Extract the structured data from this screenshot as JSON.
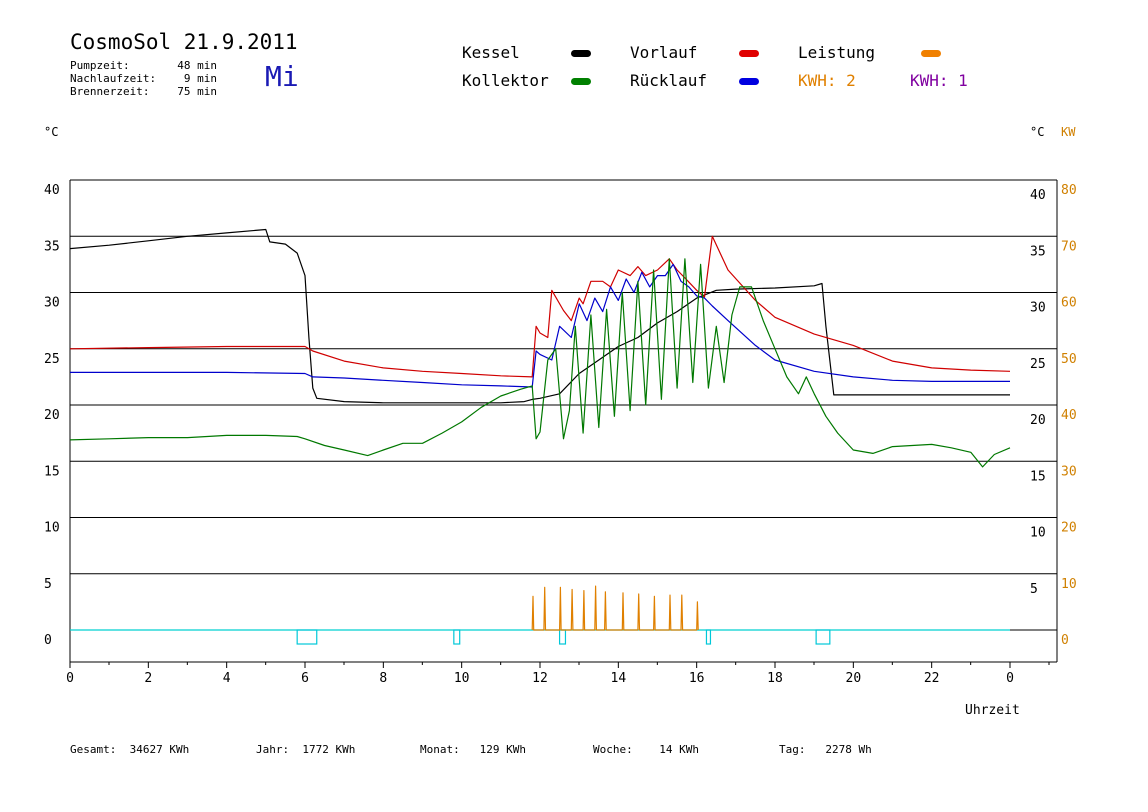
{
  "title": "CosmoSol 21.9.2011",
  "day": "Mi",
  "stats": [
    {
      "label": "Pumpzeit:",
      "value": "48 min"
    },
    {
      "label": "Nachlaufzeit:",
      "value": "9 min"
    },
    {
      "label": "Brennerzeit:",
      "value": "75 min"
    }
  ],
  "legend": [
    {
      "label": "Kessel",
      "color": "#000000"
    },
    {
      "label": "Vorlauf",
      "color": "#e00000"
    },
    {
      "label": "Leistung",
      "color": "#f08000"
    },
    {
      "label": "Kollektor",
      "color": "#008000"
    },
    {
      "label": "Rücklauf",
      "color": "#0000e0"
    },
    {
      "label": "KWH: 2",
      "color": "#e08000"
    },
    {
      "label": "KWH: 1",
      "color": "#8000a0"
    }
  ],
  "units": {
    "left": "°C",
    "right_c": "°C",
    "right_kw": "KW"
  },
  "footer": {
    "gesamt": "Gesamt:  34627 KWh",
    "jahr": "Jahr:  1772 KWh",
    "monat": "Monat:   129 KWh",
    "woche": "Woche:    14 KWh",
    "tag": "Tag:   2278 Wh"
  },
  "chart_data": {
    "type": "line",
    "xlabel": "Uhrzeit",
    "xlim": [
      0,
      24
    ],
    "ylim": [
      0,
      40
    ],
    "x_tick_labels": [
      "0",
      "2",
      "4",
      "6",
      "8",
      "10",
      "12",
      "14",
      "16",
      "18",
      "20",
      "22",
      "0"
    ],
    "y_ticks": [
      0,
      5,
      10,
      15,
      20,
      25,
      30,
      35,
      40
    ],
    "right_c_ticks": [
      "5",
      "10",
      "15",
      "20",
      "25",
      "30",
      "35",
      "40"
    ],
    "right_kw_ticks": [
      "0",
      "10",
      "20",
      "30",
      "40",
      "50",
      "60",
      "70",
      "80"
    ],
    "grid": true,
    "series": [
      {
        "name": "Kessel",
        "color": "#000000",
        "x": [
          0,
          1,
          2,
          3,
          4,
          5,
          5.1,
          5.5,
          5.8,
          6.0,
          6.1,
          6.2,
          6.3,
          7,
          8,
          9,
          10,
          11,
          11.6,
          11.8,
          12.0,
          12.5,
          13,
          13.5,
          14,
          14.5,
          15,
          15.5,
          16,
          16.5,
          17,
          18,
          19,
          19.2,
          19.3,
          19.5,
          21,
          22,
          23,
          24
        ],
        "y": [
          33.9,
          34.2,
          34.6,
          35.0,
          35.3,
          35.6,
          34.5,
          34.3,
          33.5,
          31.5,
          26,
          21.5,
          20.6,
          20.3,
          20.2,
          20.2,
          20.2,
          20.2,
          20.3,
          20.5,
          20.6,
          21.0,
          22.8,
          24.0,
          25.2,
          26.0,
          27.3,
          28.3,
          29.5,
          30.2,
          30.3,
          30.4,
          30.6,
          30.8,
          27,
          20.9,
          20.9,
          20.9,
          20.9,
          20.9
        ]
      },
      {
        "name": "Vorlauf",
        "color": "#d00000",
        "x": [
          0,
          2,
          4,
          6,
          6.2,
          7,
          8,
          9,
          10,
          11,
          11.8,
          11.9,
          12.0,
          12.2,
          12.3,
          12.6,
          12.8,
          13.0,
          13.1,
          13.3,
          13.6,
          13.8,
          14.0,
          14.3,
          14.5,
          14.7,
          15.0,
          15.3,
          15.5,
          15.7,
          16.0,
          16.2,
          16.4,
          16.8,
          17.5,
          18,
          19,
          20,
          21,
          22,
          23,
          24
        ],
        "y": [
          25.0,
          25.1,
          25.2,
          25.2,
          24.8,
          23.9,
          23.3,
          23.0,
          22.8,
          22.6,
          22.5,
          27.0,
          26.4,
          26.0,
          30.2,
          28.4,
          27.5,
          29.5,
          29.0,
          31.0,
          31.0,
          30.5,
          32.0,
          31.5,
          32.3,
          31.5,
          32.0,
          33.0,
          32.0,
          31.3,
          30.2,
          29.6,
          35.0,
          32.0,
          29.3,
          27.8,
          26.3,
          25.3,
          23.9,
          23.3,
          23.1,
          23.0
        ]
      },
      {
        "name": "Rücklauf",
        "color": "#0000cc",
        "x": [
          0,
          2,
          4,
          6,
          6.2,
          7,
          8,
          9,
          10,
          11,
          11.8,
          11.9,
          12.0,
          12.3,
          12.5,
          12.8,
          13.0,
          13.2,
          13.4,
          13.6,
          13.8,
          14.0,
          14.2,
          14.4,
          14.6,
          14.8,
          15.0,
          15.2,
          15.4,
          15.6,
          15.8,
          16.0,
          16.2,
          16.4,
          16.8,
          17.5,
          18,
          19,
          20,
          21,
          22,
          23,
          24
        ],
        "y": [
          22.9,
          22.9,
          22.9,
          22.8,
          22.5,
          22.4,
          22.2,
          22.0,
          21.8,
          21.7,
          21.6,
          24.8,
          24.5,
          24.0,
          27.0,
          26.0,
          29.0,
          27.5,
          29.5,
          28.3,
          30.5,
          29.3,
          31.2,
          30.0,
          31.8,
          30.5,
          31.5,
          31.5,
          32.5,
          31.0,
          30.5,
          29.7,
          29.5,
          28.8,
          27.5,
          25.3,
          24.0,
          23.0,
          22.5,
          22.2,
          22.1,
          22.1,
          22.1
        ]
      },
      {
        "name": "Kollektor",
        "color": "#007800",
        "x": [
          0,
          1,
          2,
          3,
          4,
          5,
          5.8,
          6,
          6.5,
          7,
          7.6,
          8,
          8.5,
          9,
          9.5,
          10,
          10.5,
          11,
          11.5,
          11.8,
          11.9,
          12.0,
          12.2,
          12.4,
          12.6,
          12.75,
          12.9,
          13.1,
          13.3,
          13.5,
          13.7,
          13.9,
          14.1,
          14.3,
          14.5,
          14.7,
          14.9,
          15.1,
          15.3,
          15.5,
          15.7,
          15.9,
          16.1,
          16.3,
          16.5,
          16.7,
          16.9,
          17.1,
          17.4,
          17.7,
          18.0,
          18.3,
          18.6,
          18.8,
          19.0,
          19.3,
          19.6,
          20,
          20.5,
          21,
          22,
          22.5,
          23,
          23.3,
          23.6,
          24
        ],
        "y": [
          16.9,
          17.0,
          17.1,
          17.1,
          17.3,
          17.3,
          17.2,
          17.0,
          16.4,
          16.0,
          15.5,
          16.0,
          16.6,
          16.6,
          17.5,
          18.5,
          19.8,
          20.8,
          21.4,
          21.7,
          17.0,
          17.6,
          24.0,
          25.0,
          17.0,
          19.5,
          27.0,
          17.5,
          28.0,
          18.0,
          28.5,
          19.0,
          30.0,
          19.5,
          31.0,
          20.0,
          32.0,
          20.5,
          33.0,
          21.5,
          33.0,
          22.0,
          32.5,
          21.5,
          27.0,
          22.0,
          28.0,
          30.5,
          30.5,
          27.5,
          25.0,
          22.5,
          21.0,
          22.5,
          21.0,
          19.0,
          17.5,
          16.0,
          15.7,
          16.3,
          16.5,
          16.2,
          15.8,
          14.5,
          15.6,
          16.2
        ]
      },
      {
        "name": "Leistung",
        "color": "#e08000",
        "x": [
          11.8,
          11.82,
          11.84,
          12.1,
          12.12,
          12.14,
          12.5,
          12.52,
          12.54,
          12.8,
          12.82,
          12.84,
          13.1,
          13.12,
          13.14,
          13.4,
          13.42,
          13.44,
          13.65,
          13.67,
          13.69,
          14.1,
          14.12,
          14.14,
          14.5,
          14.52,
          14.54,
          14.9,
          14.92,
          14.94,
          15.3,
          15.32,
          15.34,
          15.6,
          15.62,
          15.64,
          16.0,
          16.02,
          16.04
        ],
        "y": [
          0,
          3.0,
          0,
          0,
          3.8,
          0,
          0,
          3.8,
          0,
          0,
          3.6,
          0,
          0,
          3.5,
          0,
          0,
          3.9,
          0,
          0,
          3.4,
          0,
          0,
          3.3,
          0,
          0,
          3.2,
          0,
          0,
          3.0,
          0,
          0,
          3.1,
          0,
          0,
          3.1,
          0,
          0,
          2.5,
          0
        ]
      }
    ],
    "pump_markers_cyan": [
      [
        5.8,
        6.3
      ],
      [
        9.8,
        9.95
      ],
      [
        12.5,
        12.65
      ],
      [
        16.25,
        16.35
      ],
      [
        19.05,
        19.4
      ]
    ]
  }
}
